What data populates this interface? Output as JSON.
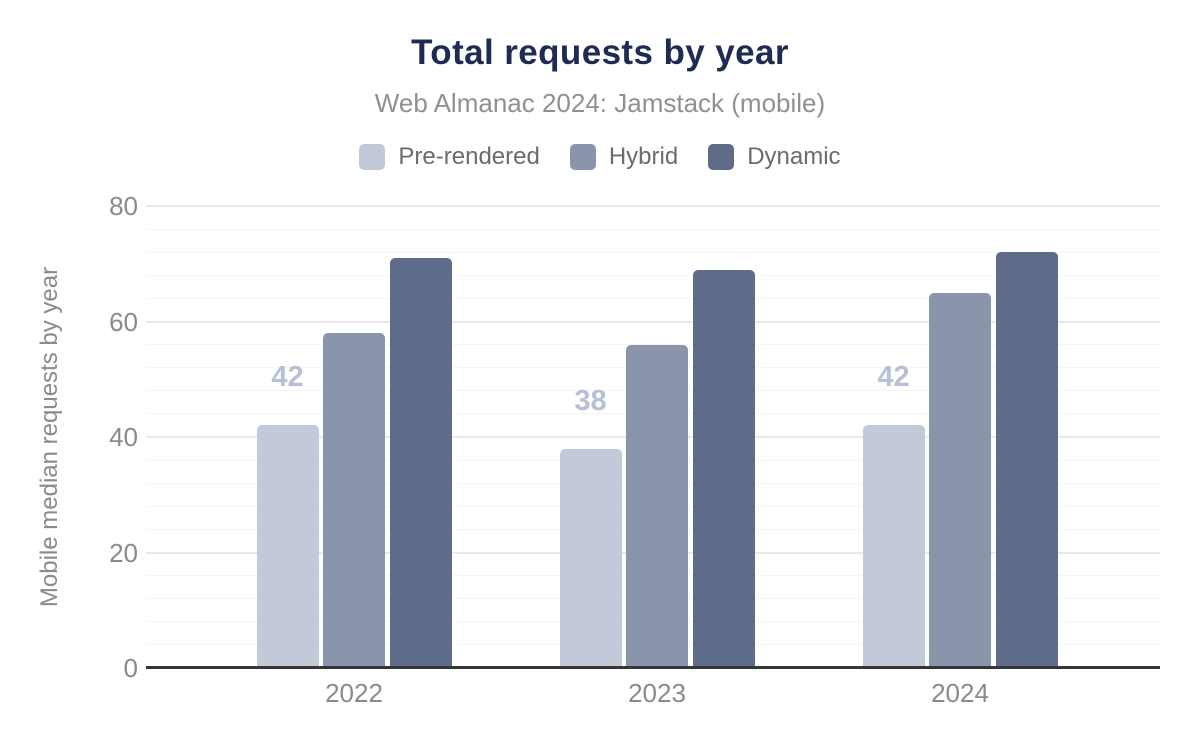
{
  "figure": {
    "title": "Total requests by year",
    "subtitle": "Web Almanac 2024: Jamstack (mobile)"
  },
  "colors": {
    "title_text": "#1e2b53",
    "subtitle_text": "#909090",
    "legend_text": "#6b6b6b",
    "axis_text": "#8a8a8a",
    "axis_line": "#353637",
    "gridline_major": "#e9e9e9",
    "gridline_minor": "#f5f5f5",
    "value_label": "#b6c0d6",
    "background": "#ffffff"
  },
  "chart_data": {
    "type": "bar",
    "title": "Total requests by year",
    "subtitle": "Web Almanac 2024: Jamstack (mobile)",
    "categories": [
      "2022",
      "2023",
      "2024"
    ],
    "series": [
      {
        "name": "Pre-rendered",
        "color": "#c2c9d9",
        "values": [
          42,
          38,
          42
        ],
        "value_labels": [
          "42",
          "38",
          "42"
        ]
      },
      {
        "name": "Hybrid",
        "color": "#8a95ac",
        "values": [
          58,
          56,
          65
        ]
      },
      {
        "name": "Dynamic",
        "color": "#5e6c89",
        "values": [
          71,
          69,
          72
        ]
      }
    ],
    "xlabel": "",
    "ylabel": "Mobile median requests by year",
    "ylim": [
      0,
      80
    ],
    "yticks": [
      0,
      20,
      40,
      60,
      80
    ],
    "minor_grid_step": 4,
    "grid": "horizontal",
    "legend_position": "top"
  }
}
